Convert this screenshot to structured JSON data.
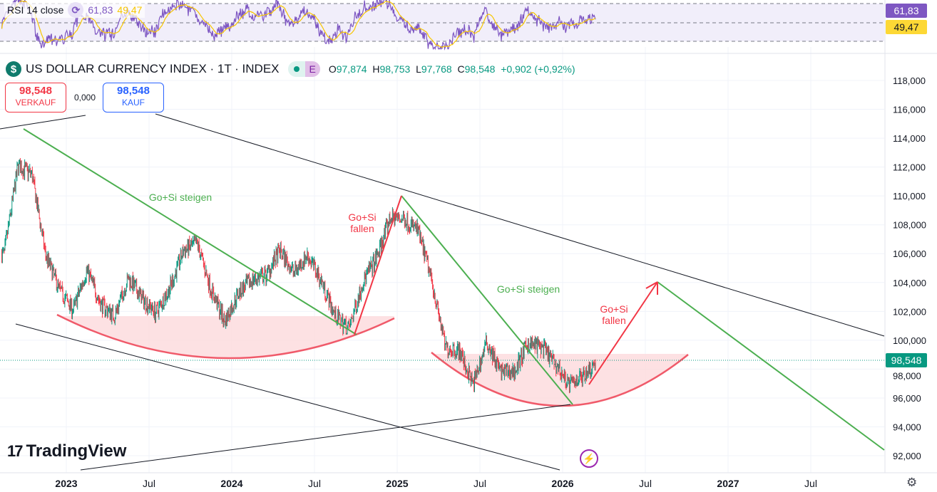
{
  "rsi": {
    "label": "RSI 14 close",
    "value": "61,83",
    "ma_value": "49,47",
    "levels": [
      70,
      50,
      30
    ],
    "line_color": "#7e57c2",
    "ma_color": "#f7c600"
  },
  "symbol": {
    "title": "US DOLLAR CURRENCY INDEX · 1T · INDEX",
    "icon": "dollar-icon",
    "market_badge": "E",
    "ohlc": {
      "o_label": "O",
      "o": "97,874",
      "h_label": "H",
      "h": "98,753",
      "l_label": "L",
      "l": "97,768",
      "c_label": "C",
      "c": "98,548",
      "change": "+0,902 (+0,92%)"
    }
  },
  "trade": {
    "sell_price": "98,548",
    "sell_label": "VERKAUF",
    "spread": "0,000",
    "buy_price": "98,548",
    "buy_label": "KAUF"
  },
  "branding": {
    "logo": "TradingView"
  },
  "colors": {
    "up": "#089981",
    "down": "#f23645",
    "green_line": "#4caf50",
    "red_line": "#f23645",
    "arc_fill": "#fcd9dc"
  },
  "chart_data": {
    "type": "candlestick",
    "title": "US DOLLAR CURRENCY INDEX",
    "interval": "1T",
    "y_ticks": [
      "92,000",
      "94,000",
      "96,000",
      "98,000",
      "100,000",
      "102,000",
      "104,000",
      "106,000",
      "108,000",
      "110,000",
      "112,000",
      "114,000",
      "116,000",
      "118,000"
    ],
    "ylim": [
      91.2,
      118.6
    ],
    "x_ticks": [
      "2023",
      "Jul",
      "2024",
      "Jul",
      "2025",
      "Jul",
      "2026",
      "Jul",
      "2027",
      "Jul"
    ],
    "last_price": "98,548",
    "monthly_close": [
      [
        "2022-08",
        106.0
      ],
      [
        "2022-09",
        112.1
      ],
      [
        "2022-10",
        111.5
      ],
      [
        "2022-11",
        105.9
      ],
      [
        "2022-12",
        103.5
      ],
      [
        "2023-01",
        102.1
      ],
      [
        "2023-02",
        104.9
      ],
      [
        "2023-03",
        102.5
      ],
      [
        "2023-04",
        101.7
      ],
      [
        "2023-05",
        104.3
      ],
      [
        "2023-06",
        102.9
      ],
      [
        "2023-07",
        101.9
      ],
      [
        "2023-08",
        103.6
      ],
      [
        "2023-09",
        106.2
      ],
      [
        "2023-10",
        106.7
      ],
      [
        "2023-11",
        103.5
      ],
      [
        "2023-12",
        101.3
      ],
      [
        "2024-01",
        103.3
      ],
      [
        "2024-02",
        104.2
      ],
      [
        "2024-03",
        104.5
      ],
      [
        "2024-04",
        106.2
      ],
      [
        "2024-05",
        104.7
      ],
      [
        "2024-06",
        105.9
      ],
      [
        "2024-07",
        104.1
      ],
      [
        "2024-08",
        101.7
      ],
      [
        "2024-09",
        100.8
      ],
      [
        "2024-10",
        104.0
      ],
      [
        "2024-11",
        105.7
      ],
      [
        "2024-12",
        108.5
      ],
      [
        "2025-01",
        108.4
      ],
      [
        "2025-02",
        107.6
      ],
      [
        "2025-03",
        104.2
      ],
      [
        "2025-04",
        99.5
      ],
      [
        "2025-05",
        99.3
      ],
      [
        "2025-06",
        96.9
      ],
      [
        "2025-07",
        99.9
      ],
      [
        "2025-08",
        97.8
      ],
      [
        "2025-09",
        97.8
      ],
      [
        "2025-10",
        99.8
      ],
      [
        "2025-11",
        99.5
      ],
      [
        "2025-12",
        98.3
      ],
      [
        "2026-01",
        96.9
      ],
      [
        "2026-02",
        97.6
      ],
      [
        "2026-03",
        98.548
      ]
    ],
    "annotations": [
      {
        "text": "Go+Si steigen",
        "color": "#4caf50"
      },
      {
        "text": "Go+Si fallen",
        "color": "#f23645"
      },
      {
        "text": "Go+Si steigen",
        "color": "#4caf50"
      },
      {
        "text": "Go+Si fallen",
        "color": "#f23645"
      }
    ]
  }
}
